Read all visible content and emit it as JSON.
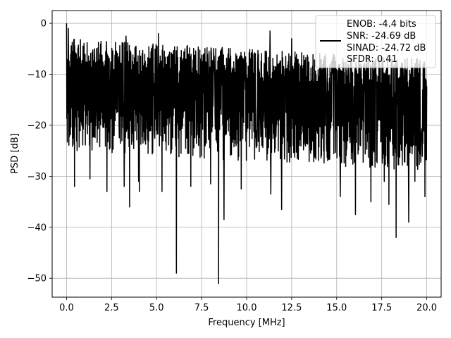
{
  "chart_data": {
    "type": "line",
    "xlabel": "Frequency [MHz]",
    "ylabel": "PSD [dB]",
    "xlim": [
      -0.8,
      20.8
    ],
    "ylim": [
      -53.7,
      2.5
    ],
    "xticks": [
      0.0,
      2.5,
      5.0,
      7.5,
      10.0,
      12.5,
      15.0,
      17.5,
      20.0
    ],
    "xtick_labels": [
      "0.0",
      "2.5",
      "5.0",
      "7.5",
      "10.0",
      "12.5",
      "15.0",
      "17.5",
      "20.0"
    ],
    "yticks": [
      0,
      -10,
      -20,
      -30,
      -40,
      -50
    ],
    "ytick_labels": [
      "0",
      "−10",
      "−20",
      "−30",
      "−40",
      "−50"
    ],
    "grid": true,
    "legend_position": "top-right",
    "series": [
      {
        "name_lines": [
          "ENOB: -4.4 bits",
          "SNR: -24.69 dB",
          "SINAD: -24.72 dB",
          "SFDR: 0.41"
        ],
        "color": "#000000",
        "x_range": [
          0.0,
          20.0
        ],
        "points_count": 1400,
        "band_top": [
          -3,
          -7
        ],
        "band_bottom": [
          -22,
          -26
        ],
        "peaks": [
          {
            "x": 0.0,
            "y": 0.0
          },
          {
            "x": 0.1,
            "y": -1.0
          },
          {
            "x": 3.3,
            "y": -2.5
          },
          {
            "x": 5.1,
            "y": -2.0
          },
          {
            "x": 11.3,
            "y": -1.5
          },
          {
            "x": 12.5,
            "y": -3.0
          }
        ],
        "dips": [
          {
            "x": 0.45,
            "y": -32.0
          },
          {
            "x": 1.3,
            "y": -30.5
          },
          {
            "x": 2.25,
            "y": -33.0
          },
          {
            "x": 3.2,
            "y": -32.0
          },
          {
            "x": 3.5,
            "y": -36.0
          },
          {
            "x": 4.0,
            "y": -31.0
          },
          {
            "x": 4.05,
            "y": -33.0
          },
          {
            "x": 5.3,
            "y": -33.0
          },
          {
            "x": 6.1,
            "y": -49.0
          },
          {
            "x": 6.9,
            "y": -32.0
          },
          {
            "x": 8.0,
            "y": -31.5
          },
          {
            "x": 8.45,
            "y": -51.0
          },
          {
            "x": 8.75,
            "y": -38.5
          },
          {
            "x": 9.7,
            "y": -32.5
          },
          {
            "x": 11.35,
            "y": -33.5
          },
          {
            "x": 11.95,
            "y": -36.5
          },
          {
            "x": 15.2,
            "y": -34.0
          },
          {
            "x": 16.05,
            "y": -37.5
          },
          {
            "x": 16.9,
            "y": -35.0
          },
          {
            "x": 17.65,
            "y": -31.0
          },
          {
            "x": 17.9,
            "y": -35.5
          },
          {
            "x": 19.0,
            "y": -39.0
          },
          {
            "x": 19.35,
            "y": -31.0
          },
          {
            "x": 19.9,
            "y": -34.0
          },
          {
            "x": 18.3,
            "y": -42.0
          }
        ]
      }
    ]
  }
}
